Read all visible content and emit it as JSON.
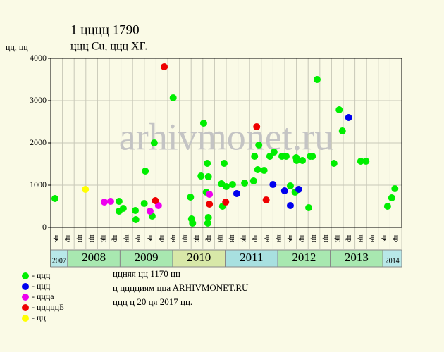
{
  "chart_data": {
    "type": "scatter",
    "title": "1 цццц 1790",
    "subtitle": "ццц Cu, ццц XF.",
    "y_label": "цц, цц",
    "watermark": "arhivmonet.ru",
    "notes": [
      "ццняя цц 1170 цц",
      "ц цццциям ццa ARHIVMONET.RU",
      "ццц ц 20 ця 2017 цц."
    ],
    "xlim": [
      2007.68,
      2014.36
    ],
    "ylim": [
      0,
      4000
    ],
    "yticks": [
      0,
      1000,
      2000,
      3000,
      4000
    ],
    "grid": true,
    "columns": [
      "цк",
      "цр",
      "цн",
      "цн",
      "цк",
      "цр",
      "цн",
      "цн",
      "цк",
      "цр",
      "цн",
      "цн",
      "цк",
      "цр",
      "цн",
      "цн",
      "цк",
      "цр",
      "цн",
      "цн",
      "цк",
      "цр",
      "цн",
      "цн",
      "цк",
      "цр",
      "цн",
      "цн",
      "цк",
      "цр"
    ],
    "years": [
      "2007",
      "2008",
      "2009",
      "2010",
      "2011",
      "2012",
      "2013",
      "2014"
    ],
    "year_colors": [
      "#b8e8e8",
      "#a8e8b0",
      "#a8e8b0",
      "#d8e8a8",
      "#a8e0e0",
      "#a8e8b0",
      "#a8e8b0",
      "#b8e8e8"
    ],
    "series": [
      {
        "name": "- ццц",
        "color": "#00ee00",
        "x": [
          2007.76,
          2008.98,
          2008.98,
          2009.06,
          2009.3,
          2009.29,
          2009.46,
          2009.48,
          2009.61,
          2009.65,
          2010.01,
          2010.34,
          2010.36,
          2010.38,
          2010.54,
          2010.59,
          2010.64,
          2010.66,
          2010.67,
          2010.68,
          2010.68,
          2010.93,
          2010.95,
          2010.98,
          2011.02,
          2011.14,
          2011.37,
          2011.54,
          2011.56,
          2011.62,
          2011.64,
          2011.74,
          2011.85,
          2011.93,
          2012.08,
          2012.16,
          2012.24,
          2012.33,
          2012.35,
          2012.36,
          2012.47,
          2012.59,
          2012.62,
          2012.66,
          2012.75,
          2013.07,
          2013.17,
          2013.23,
          2013.58,
          2013.68,
          2014.09,
          2014.17,
          2014.23
        ],
        "values": [
          683,
          617,
          383,
          450,
          183,
          400,
          567,
          1333,
          267,
          2000,
          3067,
          717,
          200,
          100,
          1217,
          2467,
          833,
          1517,
          100,
          233,
          1200,
          1033,
          500,
          1517,
          967,
          1017,
          1050,
          1100,
          1683,
          1367,
          1950,
          1350,
          1683,
          1783,
          1683,
          1683,
          983,
          833,
          1650,
          1583,
          1583,
          467,
          1683,
          1683,
          3500,
          1517,
          2783,
          2283,
          1567,
          1567,
          500,
          700,
          917
        ]
      },
      {
        "name": "- ццц",
        "color": "#0000ee",
        "x": [
          2011.22,
          2011.91,
          2012.13,
          2012.24,
          2012.4,
          2013.35
        ],
        "values": [
          800,
          1017,
          867,
          517,
          900,
          2600
        ]
      },
      {
        "name": "- цццa",
        "color": "#ee00ee",
        "x": [
          2008.7,
          2008.82,
          2009.57,
          2009.73,
          2010.7
        ],
        "values": [
          600,
          617,
          383,
          517,
          783
        ]
      },
      {
        "name": "- цццццБ",
        "color": "#ee0000",
        "x": [
          2009.67,
          2009.84,
          2010.7,
          2011.01,
          2011.6,
          2011.78
        ],
        "values": [
          633,
          3800,
          550,
          600,
          2383,
          650
        ]
      },
      {
        "name": "- цц",
        "color": "#ffff00",
        "x": [
          2008.34
        ],
        "values": [
          900
        ]
      }
    ]
  }
}
